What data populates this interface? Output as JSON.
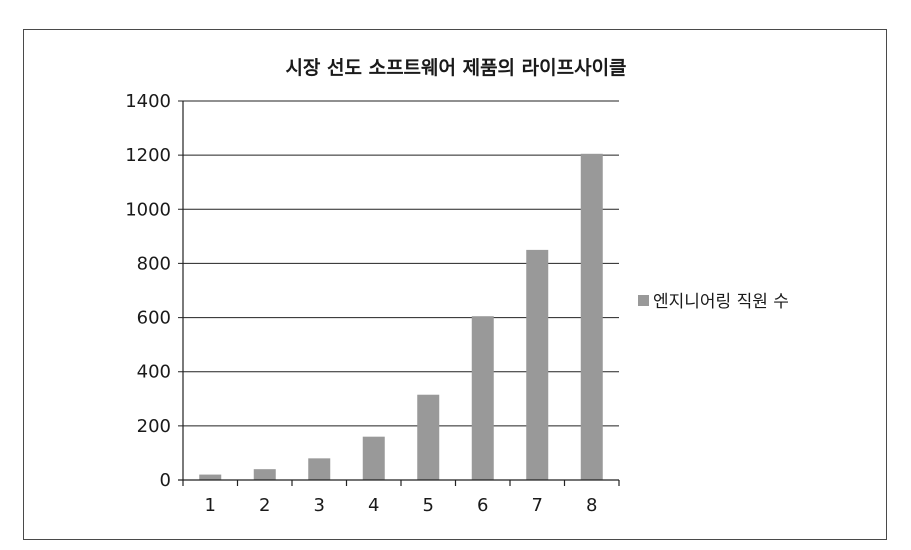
{
  "chart_data": {
    "type": "bar",
    "title": "시장 선도 소프트웨어 제품의 라이프사이클",
    "categories": [
      "1",
      "2",
      "3",
      "4",
      "5",
      "6",
      "7",
      "8"
    ],
    "series": [
      {
        "name": "엔지니어링 직원 수",
        "values": [
          20,
          40,
          80,
          160,
          315,
          605,
          850,
          1205
        ],
        "color": "#999999"
      }
    ],
    "ylim": [
      0,
      1400
    ],
    "yticks": [
      0,
      200,
      400,
      600,
      800,
      1000,
      1200,
      1400
    ],
    "grid": "horizontal",
    "legend_position": "right"
  }
}
